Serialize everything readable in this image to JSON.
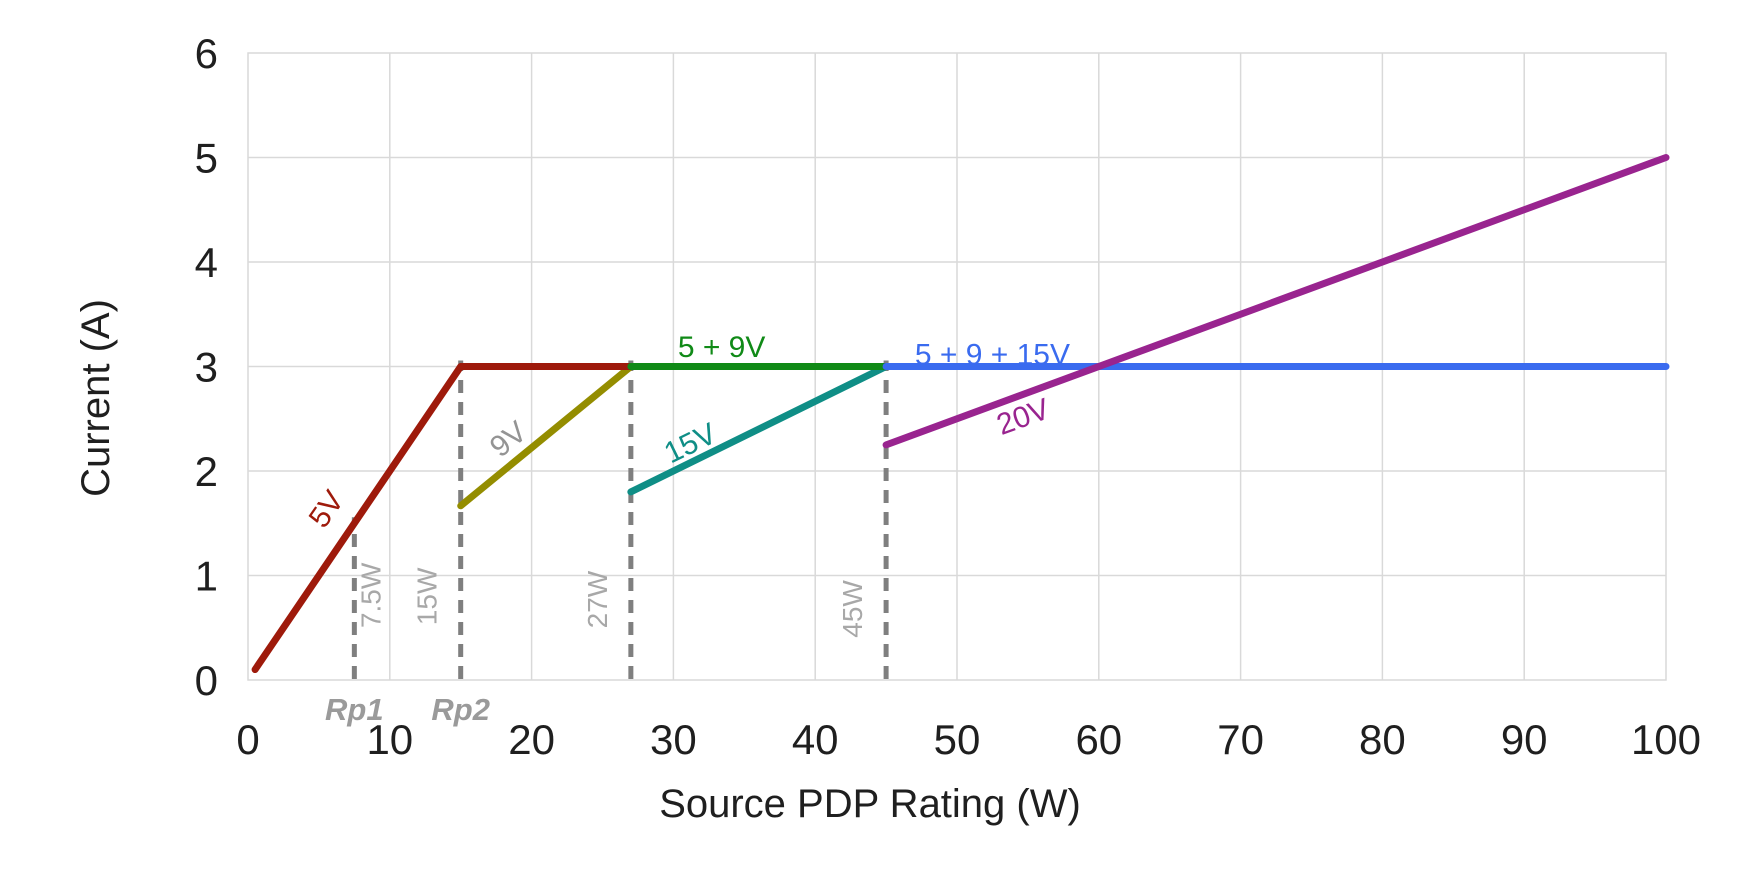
{
  "chart_data": {
    "type": "line",
    "title": "",
    "xlabel": "Source PDP Rating (W)",
    "ylabel": "Current (A)",
    "xlim": [
      0,
      100
    ],
    "ylim": [
      0,
      6
    ],
    "xticks": [
      0,
      10,
      20,
      30,
      40,
      50,
      60,
      70,
      80,
      90,
      100
    ],
    "yticks": [
      0,
      1,
      2,
      3,
      4,
      5,
      6
    ],
    "grid": true,
    "legend": "none (inline line labels)",
    "series": [
      {
        "name": "9V",
        "color": "#948D00",
        "points": [
          [
            15,
            1.667
          ],
          [
            27,
            3
          ]
        ]
      },
      {
        "name": "15V",
        "color": "#0F8E86",
        "points": [
          [
            27,
            1.8
          ],
          [
            45,
            3
          ]
        ]
      },
      {
        "name": "5V",
        "color": "#9E1A0B",
        "points": [
          [
            0.5,
            0.1
          ],
          [
            15,
            3
          ],
          [
            27,
            3
          ]
        ]
      },
      {
        "name": "5 + 9V",
        "color": "#108A17",
        "points": [
          [
            27,
            3
          ],
          [
            45,
            3
          ]
        ]
      },
      {
        "name": "5 + 9 + 15V",
        "color": "#3A6BEF",
        "points": [
          [
            45,
            3
          ],
          [
            100,
            3
          ]
        ]
      },
      {
        "name": "20V",
        "color": "#99248F",
        "points": [
          [
            45,
            2.25
          ],
          [
            100,
            5
          ]
        ]
      }
    ],
    "annotations": [
      {
        "text": "5V",
        "x": 6.1,
        "y": 1.58,
        "rot": -55,
        "color": "#9E1A0B"
      },
      {
        "text": "9V",
        "x": 18.8,
        "y": 2.23,
        "rot": -39,
        "color": "#949494"
      },
      {
        "text": "15V",
        "x": 31.5,
        "y": 2.18,
        "rot": -26,
        "color": "#0F8E86"
      },
      {
        "text": "20V",
        "x": 54.9,
        "y": 2.43,
        "rot": -20,
        "color": "#99248F"
      },
      {
        "text": "5 + 9V",
        "x": 33.4,
        "y": 3.09,
        "rot": 0,
        "color": "#108A17"
      },
      {
        "text": "5 + 9 + 15V",
        "x": 52.5,
        "y": 3.02,
        "rot": 0,
        "color": "#3A6BEF"
      }
    ],
    "thresholds": [
      {
        "x": 7.5,
        "y_top": 1.5,
        "label": "7.5W",
        "side": "right",
        "label_y": 0.81,
        "rp": "Rp1"
      },
      {
        "x": 15,
        "y_top": 3,
        "label": "15W",
        "side": "left",
        "label_y": 0.8,
        "rp": "Rp2"
      },
      {
        "x": 27,
        "y_top": 3,
        "label": "27W",
        "side": "left",
        "label_y": 0.77,
        "rp": ""
      },
      {
        "x": 45,
        "y_top": 3,
        "label": "45W",
        "side": "left",
        "label_y": 0.68,
        "rp": ""
      }
    ],
    "style": {
      "grid_color": "#D9D9D9",
      "tick_color": "#1F1F1F",
      "threshold_line_color": "#7F7F7F",
      "threshold_label_color": "#A8A8A8",
      "rp_label_color": "#9A9A9A",
      "background": "#FFFFFF"
    }
  }
}
